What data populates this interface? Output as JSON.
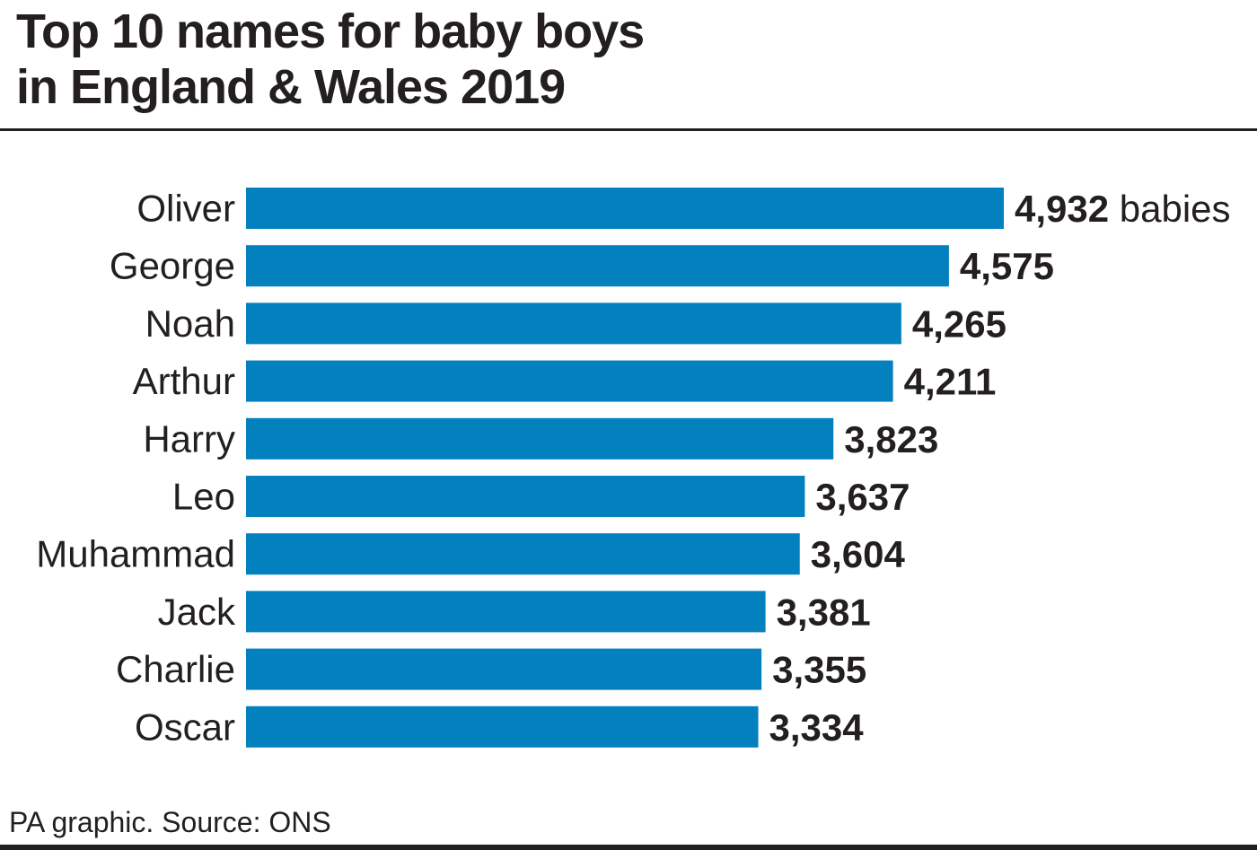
{
  "title": {
    "line1": "Top 10 names for baby boys",
    "line2": "in England & Wales 2019"
  },
  "footer": {
    "source": "PA graphic. Source: ONS"
  },
  "colors": {
    "bar": "#0380be",
    "text": "#231f20"
  },
  "chart_data": {
    "type": "bar",
    "orientation": "horizontal",
    "categories": [
      "Oliver",
      "George",
      "Noah",
      "Arthur",
      "Harry",
      "Leo",
      "Muhammad",
      "Jack",
      "Charlie",
      "Oscar"
    ],
    "values": [
      4932,
      4575,
      4265,
      4211,
      3823,
      3637,
      3604,
      3381,
      3355,
      3334
    ],
    "value_labels": [
      "4,932",
      "4,575",
      "4,265",
      "4,211",
      "3,823",
      "3,637",
      "3,604",
      "3,381",
      "3,355",
      "3,334"
    ],
    "unit_label": "babies",
    "title": "Top 10 names for baby boys in England & Wales 2019",
    "xlabel": "",
    "ylabel": "",
    "xlim": [
      0,
      4932
    ],
    "grid": false,
    "legend": "none"
  }
}
